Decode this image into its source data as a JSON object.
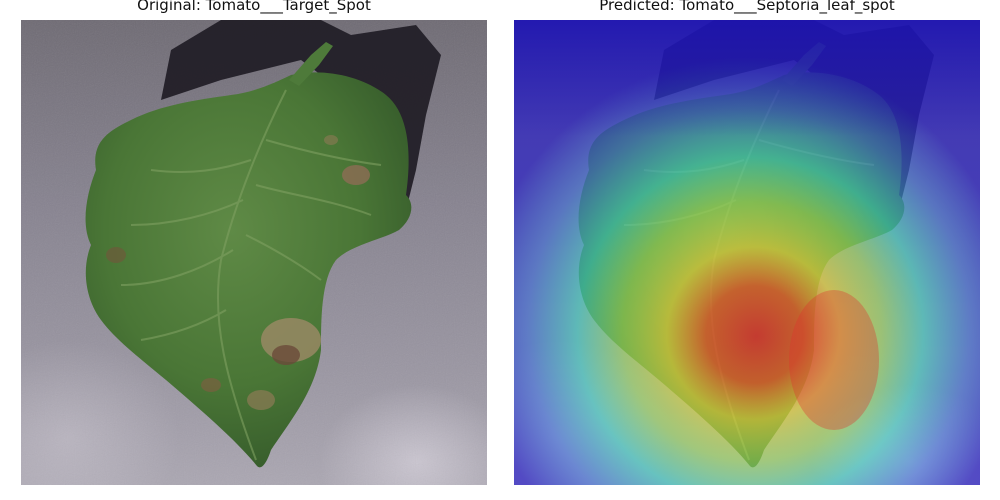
{
  "panels": [
    {
      "title": "Original: Tomato___Target_Spot"
    },
    {
      "title": "Predicted: Tomato___Septoria_leaf_spot"
    }
  ],
  "colors": {
    "background": "#8a8692",
    "shadow": "#1e1b24",
    "leaf": "#4f7a3a",
    "leaf_dark": "#2f4f24",
    "lesion": "#a08a6a",
    "heat_low": "#2a2ad0",
    "heat_mid": "#3ce0d0",
    "heat_high": "#e0e040",
    "heat_peak": "#e03030"
  }
}
